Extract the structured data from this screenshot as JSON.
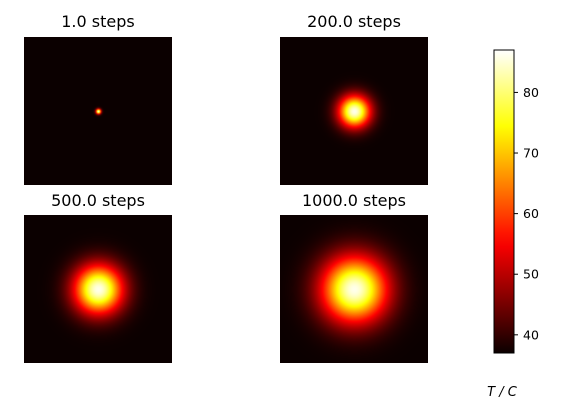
{
  "chart_data": {
    "type": "heatmap",
    "colormap": "hot",
    "background_value": 37,
    "panels": [
      {
        "title": "1.0 steps",
        "spot_peak": 86,
        "spot_spread": 0.012
      },
      {
        "title": "200.0 steps",
        "spot_peak": 86,
        "spot_spread": 0.075
      },
      {
        "title": "500.0 steps",
        "spot_peak": 86,
        "spot_spread": 0.115
      },
      {
        "title": "1000.0 steps",
        "spot_peak": 86,
        "spot_spread": 0.155
      }
    ],
    "colorbar": {
      "range": [
        37,
        87
      ],
      "ticks": [
        40,
        50,
        60,
        70,
        80
      ],
      "tick_labels": [
        "40",
        "50",
        "60",
        "70",
        "80"
      ],
      "label": "T / C"
    }
  }
}
